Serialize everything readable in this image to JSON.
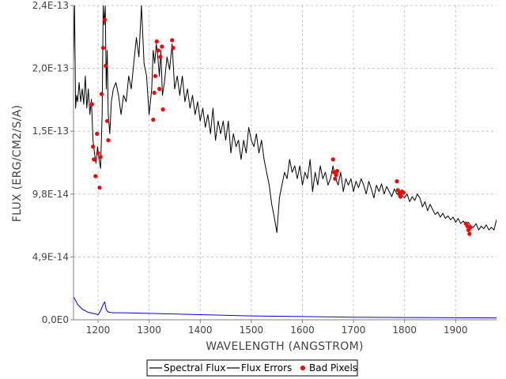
{
  "chart_data": {
    "type": "line",
    "title": "",
    "xlabel": "WAVELENGTH (ANGSTROM)",
    "ylabel": "FLUX (ERG/CM2/S/A)",
    "xlim": [
      1152,
      1980
    ],
    "ylim": [
      0,
      2.45e-13
    ],
    "grid": true,
    "legend_position": "bottom-center",
    "x_ticks": [
      {
        "value": 1200,
        "label": "1200"
      },
      {
        "value": 1300,
        "label": "1300"
      },
      {
        "value": 1400,
        "label": "1400"
      },
      {
        "value": 1500,
        "label": "1500"
      },
      {
        "value": 1600,
        "label": "1600"
      },
      {
        "value": 1700,
        "label": "1700"
      },
      {
        "value": 1800,
        "label": "1800"
      },
      {
        "value": 1900,
        "label": "1900"
      }
    ],
    "y_ticks": [
      {
        "value": 0,
        "label": "0,0E0"
      },
      {
        "value": 4.9e-14,
        "label": "4,9E-14"
      },
      {
        "value": 9.8e-14,
        "label": "9,8E-14"
      },
      {
        "value": 1.47e-13,
        "label": "1,5E-13"
      },
      {
        "value": 1.96e-13,
        "label": "2,0E-13"
      },
      {
        "value": 2.45e-13,
        "label": "2,4E-13"
      }
    ],
    "series": [
      {
        "name": "Spectral Flux",
        "color": "#000000",
        "x": [
          1152,
          1154,
          1156,
          1158,
          1160,
          1163,
          1166,
          1169,
          1172,
          1175,
          1178,
          1181,
          1184,
          1187,
          1190,
          1193,
          1196,
          1199,
          1202,
          1205,
          1208,
          1210,
          1212,
          1214,
          1216,
          1218,
          1220,
          1223,
          1226,
          1230,
          1235,
          1240,
          1245,
          1250,
          1255,
          1260,
          1265,
          1270,
          1275,
          1280,
          1285,
          1290,
          1295,
          1300,
          1305,
          1308,
          1311,
          1314,
          1317,
          1320,
          1323,
          1326,
          1330,
          1335,
          1340,
          1345,
          1350,
          1355,
          1360,
          1365,
          1370,
          1375,
          1380,
          1385,
          1390,
          1395,
          1400,
          1405,
          1410,
          1415,
          1420,
          1425,
          1430,
          1435,
          1440,
          1445,
          1450,
          1455,
          1460,
          1465,
          1470,
          1475,
          1480,
          1485,
          1490,
          1495,
          1500,
          1505,
          1510,
          1515,
          1520,
          1525,
          1530,
          1535,
          1540,
          1545,
          1550,
          1555,
          1560,
          1565,
          1570,
          1575,
          1580,
          1585,
          1590,
          1595,
          1600,
          1605,
          1610,
          1615,
          1620,
          1625,
          1630,
          1635,
          1640,
          1645,
          1650,
          1655,
          1660,
          1665,
          1670,
          1675,
          1680,
          1685,
          1690,
          1695,
          1700,
          1705,
          1710,
          1715,
          1720,
          1725,
          1730,
          1735,
          1740,
          1745,
          1750,
          1755,
          1760,
          1765,
          1770,
          1775,
          1780,
          1785,
          1790,
          1795,
          1800,
          1805,
          1810,
          1815,
          1820,
          1825,
          1830,
          1835,
          1840,
          1845,
          1850,
          1855,
          1860,
          1865,
          1870,
          1875,
          1880,
          1885,
          1890,
          1895,
          1900,
          1905,
          1910,
          1915,
          1920,
          1925,
          1930,
          1935,
          1940,
          1945,
          1950,
          1955,
          1960,
          1965,
          1970,
          1975,
          1980
        ],
        "values": [
          2e-13,
          2.45e-13,
          1.65e-13,
          1.75e-13,
          1.7e-13,
          1.85e-13,
          1.7e-13,
          1.8e-13,
          1.68e-13,
          1.9e-13,
          1.65e-13,
          1.8e-13,
          1.6e-13,
          1.72e-13,
          1.4e-13,
          1.3e-13,
          1.22e-13,
          1.35e-13,
          1.25e-13,
          1.18e-13,
          1.6e-13,
          2.45e-13,
          2.3e-13,
          2.45e-13,
          1.8e-13,
          2.1e-13,
          1.6e-13,
          1.45e-13,
          1.7e-13,
          1.8e-13,
          1.85e-13,
          1.75e-13,
          1.6e-13,
          1.75e-13,
          1.7e-13,
          1.9e-13,
          1.8e-13,
          2e-13,
          2.2e-13,
          2.05e-13,
          2.45e-13,
          2e-13,
          1.9e-13,
          1.6e-13,
          1.8e-13,
          2.1e-13,
          2e-13,
          2.15e-13,
          2.05e-13,
          1.9e-13,
          2.1e-13,
          1.75e-13,
          1.85e-13,
          2.05e-13,
          1.95e-13,
          2.15e-13,
          1.8e-13,
          1.9e-13,
          1.75e-13,
          1.9e-13,
          1.7e-13,
          1.8e-13,
          1.65e-13,
          1.75e-13,
          1.6e-13,
          1.7e-13,
          1.55e-13,
          1.65e-13,
          1.5e-13,
          1.6e-13,
          1.45e-13,
          1.65e-13,
          1.4e-13,
          1.55e-13,
          1.45e-13,
          1.55e-13,
          1.4e-13,
          1.55e-13,
          1.3e-13,
          1.45e-13,
          1.35e-13,
          1.4e-13,
          1.25e-13,
          1.4e-13,
          1.3e-13,
          1.5e-13,
          1.4e-13,
          1.35e-13,
          1.45e-13,
          1.3e-13,
          1.4e-13,
          1.25e-13,
          1.15e-13,
          1.05e-13,
          9e-14,
          8e-14,
          6.8e-14,
          9.5e-14,
          1.05e-13,
          1.15e-13,
          1.1e-13,
          1.25e-13,
          1.15e-13,
          1.2e-13,
          1.1e-13,
          1.2e-13,
          1.05e-13,
          1.15e-13,
          1.1e-13,
          1.25e-13,
          1e-13,
          1.15e-13,
          1.05e-13,
          1.2e-13,
          1.1e-13,
          1.15e-13,
          1.05e-13,
          1.1e-13,
          1.2e-13,
          1.1e-13,
          1.05e-13,
          1.15e-13,
          1e-13,
          1.1e-13,
          1.05e-13,
          1.1e-13,
          1e-13,
          1.08e-13,
          1.03e-13,
          1.1e-13,
          1.05e-13,
          9.8e-14,
          1.08e-13,
          1.02e-13,
          9.5e-14,
          1.05e-13,
          1e-13,
          1.06e-13,
          9.8e-14,
          1.04e-13,
          1e-13,
          9.6e-14,
          1.02e-13,
          9.8e-14,
          1e-13,
          9.7e-14,
          9.5e-14,
          9.8e-14,
          9.2e-14,
          9.6e-14,
          9.3e-14,
          9.8e-14,
          9.5e-14,
          8.8e-14,
          9.2e-14,
          8.5e-14,
          9e-14,
          8.6e-14,
          8.2e-14,
          8.4e-14,
          8e-14,
          8.3e-14,
          7.9e-14,
          8.1e-14,
          7.8e-14,
          8e-14,
          7.6e-14,
          7.9e-14,
          7.5e-14,
          7.7e-14,
          7.4e-14,
          7.6e-14,
          7.3e-14,
          7.2e-14,
          7.5e-14,
          7e-14,
          7.3e-14,
          7.1e-14,
          7.4e-14,
          7e-14,
          7.2e-14,
          7e-14,
          7.8e-14
        ]
      },
      {
        "name": "Flux Errors",
        "color": "#0000ff",
        "x": [
          1152,
          1160,
          1170,
          1180,
          1190,
          1200,
          1205,
          1210,
          1213,
          1216,
          1220,
          1230,
          1250,
          1300,
          1400,
          1500,
          1600,
          1700,
          1800,
          1900,
          1980
        ],
        "values": [
          1.8e-14,
          1.2e-14,
          8e-15,
          6e-15,
          5e-15,
          4e-15,
          7e-15,
          1.2e-14,
          1.4e-14,
          8e-15,
          6e-15,
          5.5e-15,
          5.5e-15,
          5e-15,
          4e-15,
          3e-15,
          2.5e-15,
          2e-15,
          1.8e-15,
          1.6e-15,
          1.5e-15
        ]
      }
    ],
    "bad_pixels": {
      "name": "Bad Pixels",
      "color": "#ff0000",
      "x": [
        1188,
        1190,
        1192,
        1195,
        1198,
        1200,
        1203,
        1205,
        1207,
        1210,
        1213,
        1215,
        1218,
        1220,
        1308,
        1310,
        1312,
        1315,
        1318,
        1320,
        1322,
        1325,
        1327,
        1345,
        1347,
        1660,
        1662,
        1664,
        1666,
        1668,
        1785,
        1787,
        1790,
        1792,
        1795,
        1798,
        1920,
        1923,
        1925,
        1927,
        1929
      ],
      "values": [
        1.68e-13,
        1.35e-13,
        1.25e-13,
        1.12e-13,
        1.45e-13,
        1.3e-13,
        1.03e-13,
        1.27e-13,
        1.76e-13,
        2.12e-13,
        2.34e-13,
        1.98e-13,
        1.55e-13,
        1.4e-13,
        1.56e-13,
        1.77e-13,
        1.9e-13,
        2.17e-13,
        2.1e-13,
        1.8e-13,
        2.05e-13,
        2.13e-13,
        1.64e-13,
        2.18e-13,
        2.12e-13,
        1.25e-13,
        1.15e-13,
        1.1e-13,
        1.13e-13,
        1.16e-13,
        1.08e-13,
        1.01e-13,
        9.8e-14,
        9.6e-14,
        1e-13,
        9.9e-14,
        7.5e-14,
        7.3e-14,
        7e-14,
        6.7e-14,
        7.2e-14
      ]
    },
    "legend": [
      {
        "label": "Spectral Flux",
        "color": "#000000",
        "kind": "line"
      },
      {
        "label": "Flux Errors",
        "color": "#0000ff",
        "kind": "line"
      },
      {
        "label": "Bad Pixels",
        "color": "#ff0000",
        "kind": "marker"
      }
    ]
  }
}
